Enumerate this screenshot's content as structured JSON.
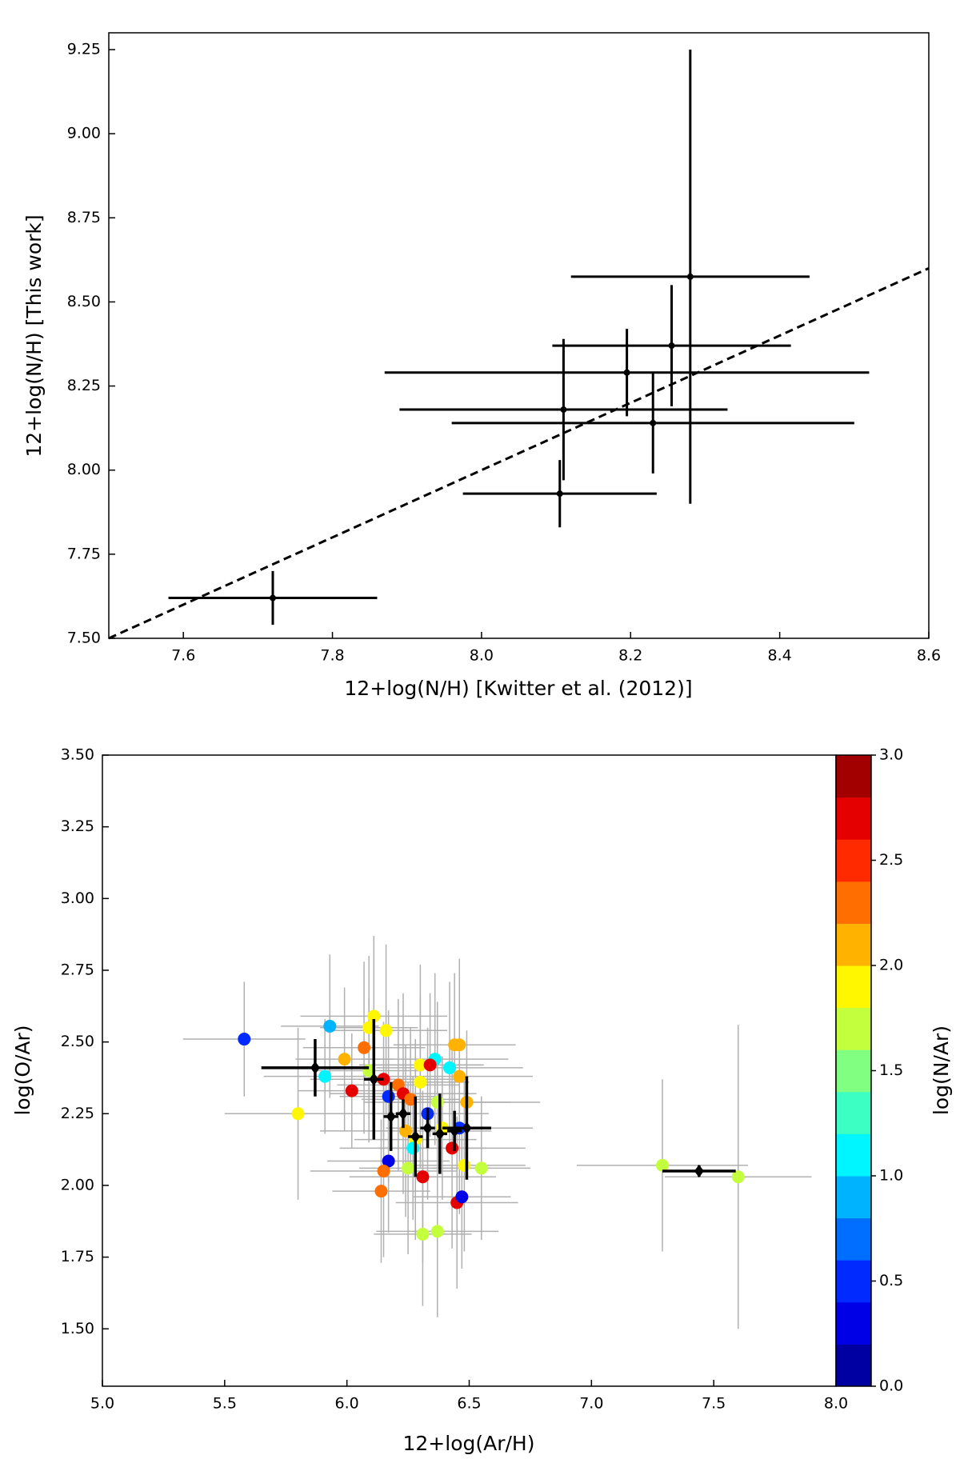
{
  "chart_data": [
    {
      "type": "errorbar",
      "xlabel": "12+log(N/H) [Kwitter et al. (2012)]",
      "ylabel": "12+log(N/H) [This work]",
      "color": "#000000",
      "reference_line": "dashed",
      "x": [
        7.72,
        8.105,
        8.11,
        8.195,
        8.23,
        8.255,
        8.28
      ],
      "y": [
        7.62,
        7.93,
        8.18,
        8.29,
        8.14,
        8.37,
        8.575
      ],
      "xerr": [
        0.14,
        0.13,
        0.22,
        0.325,
        0.27,
        0.16,
        0.16
      ],
      "yerr": [
        0.08,
        0.1,
        0.21,
        0.13,
        0.15,
        0.18,
        0.675
      ],
      "xlim": [
        7.5,
        8.6
      ],
      "ylim": [
        7.5,
        9.3
      ],
      "xticks": [
        7.6,
        7.8,
        {
          "value": 8,
          "label": "8.0"
        },
        8.2,
        8.4,
        8.6
      ],
      "yticks": [
        {
          "value": 7.5,
          "label": "7.50"
        },
        7.75,
        {
          "value": 8,
          "label": "8.00"
        },
        8.25,
        {
          "value": 8.5,
          "label": "8.50"
        },
        8.75,
        {
          "value": 9,
          "label": "9.00"
        },
        9.25
      ]
    },
    {
      "type": "color-scatter",
      "xlabel": "12+log(Ar/H)",
      "ylabel": "log(O/Ar)",
      "colorbar_label": "log(N/Ar)",
      "colormap": "jet",
      "colorbar_levels": 15,
      "clim": [
        0,
        3
      ],
      "cticks": [
        {
          "value": 0,
          "label": "0.0"
        },
        0.5,
        {
          "value": 1,
          "label": "1.0"
        },
        1.5,
        {
          "value": 2,
          "label": "2.0"
        },
        2.5,
        {
          "value": 3,
          "label": "3.0"
        }
      ],
      "errorbar_color": "#b0b0b0",
      "points": {
        "x": [
          5.58,
          5.93,
          5.8,
          5.91,
          5.99,
          6.02,
          6.07,
          6.09,
          6.11,
          6.16,
          6.09,
          6.15,
          6.17,
          6.17,
          6.15,
          6.14,
          6.21,
          6.23,
          6.26,
          6.24,
          6.28,
          6.25,
          6.27,
          6.3,
          6.3,
          6.31,
          6.31,
          6.37,
          6.36,
          6.34,
          6.33,
          6.37,
          6.39,
          6.42,
          6.44,
          6.46,
          6.46,
          6.45,
          6.47,
          6.46,
          6.49,
          6.48,
          6.55,
          6.43,
          7.29,
          7.6
        ],
        "y": [
          2.51,
          2.555,
          2.25,
          2.38,
          2.44,
          2.33,
          2.48,
          2.55,
          2.59,
          2.54,
          2.4,
          2.37,
          2.31,
          2.085,
          2.05,
          1.98,
          2.35,
          2.32,
          2.3,
          2.19,
          2.16,
          2.06,
          2.13,
          2.42,
          2.36,
          2.03,
          1.83,
          1.84,
          2.44,
          2.42,
          2.25,
          2.29,
          2.2,
          2.41,
          2.49,
          2.49,
          2.38,
          1.94,
          1.96,
          2.2,
          2.29,
          2.07,
          2.06,
          2.13,
          2.07,
          2.03
        ],
        "c": [
          0.4,
          0.8,
          1.9,
          1.1,
          2.1,
          2.6,
          2.3,
          1.9,
          1.9,
          1.9,
          1.6,
          2.6,
          0.4,
          0.3,
          2.3,
          2.3,
          2.3,
          2.7,
          2.2,
          2.1,
          1.9,
          1.6,
          1.1,
          1.9,
          1.9,
          2.6,
          1.7,
          1.7,
          1.1,
          2.6,
          0.5,
          1.7,
          1.9,
          1.1,
          2.1,
          2.1,
          2.1,
          2.6,
          0.2,
          0.5,
          2.1,
          1.9,
          1.7,
          2.6,
          1.6,
          1.6
        ],
        "xerr": [
          0.25,
          0.2,
          0.3,
          0.25,
          0.2,
          0.22,
          0.25,
          0.2,
          0.3,
          0.25,
          0.22,
          0.3,
          0.2,
          0.25,
          0.3,
          0.2,
          0.25,
          0.3,
          0.2,
          0.35,
          0.25,
          0.2,
          0.3,
          0.25,
          0.2,
          0.3,
          0.2,
          0.25,
          0.3,
          0.22,
          0.25,
          0.3,
          0.2,
          0.3,
          0.25,
          0.2,
          0.3,
          0.25,
          0.2,
          0.3,
          0.3,
          0.25,
          0.2,
          0.3,
          0.35,
          0.3
        ],
        "yerr": [
          0.2,
          0.25,
          0.3,
          0.2,
          0.25,
          0.2,
          0.3,
          0.25,
          0.28,
          0.3,
          0.25,
          0.2,
          0.3,
          0.25,
          0.3,
          0.25,
          0.3,
          0.35,
          0.25,
          0.3,
          0.35,
          0.3,
          0.25,
          0.35,
          0.3,
          0.3,
          0.25,
          0.3,
          0.3,
          0.25,
          0.3,
          0.35,
          0.25,
          0.3,
          0.25,
          0.3,
          0.25,
          0.3,
          0.25,
          0.3,
          0.25,
          0.3,
          0.25,
          0.35,
          0.3,
          0.53
        ]
      },
      "means": {
        "color": "#000000",
        "x": [
          5.87,
          6.11,
          6.18,
          6.23,
          6.28,
          6.33,
          6.38,
          6.44,
          6.49,
          7.44
        ],
        "y": [
          2.41,
          2.37,
          2.24,
          2.25,
          2.17,
          2.2,
          2.18,
          2.19,
          2.2,
          2.05
        ],
        "xerr": [
          0.22,
          0.04,
          0.03,
          0.03,
          0.03,
          0.03,
          0.03,
          0.03,
          0.1,
          0.15
        ],
        "yerr": [
          0.1,
          0.21,
          0.12,
          0.05,
          0.14,
          0.07,
          0.14,
          0.07,
          0.18,
          0.02
        ]
      },
      "xlim": [
        5,
        8
      ],
      "ylim": [
        1.3,
        3.5
      ],
      "xticks": [
        {
          "value": 5,
          "label": "5.0"
        },
        5.5,
        {
          "value": 6,
          "label": "6.0"
        },
        6.5,
        {
          "value": 7,
          "label": "7.0"
        },
        7.5,
        {
          "value": 8,
          "label": "8.0"
        }
      ],
      "yticks": [
        {
          "value": 1.5,
          "label": "1.50"
        },
        1.75,
        {
          "value": 2,
          "label": "2.00"
        },
        2.25,
        {
          "value": 2.5,
          "label": "2.50"
        },
        2.75,
        {
          "value": 3,
          "label": "3.00"
        },
        3.25,
        {
          "value": 3.5,
          "label": "3.50"
        }
      ]
    }
  ]
}
